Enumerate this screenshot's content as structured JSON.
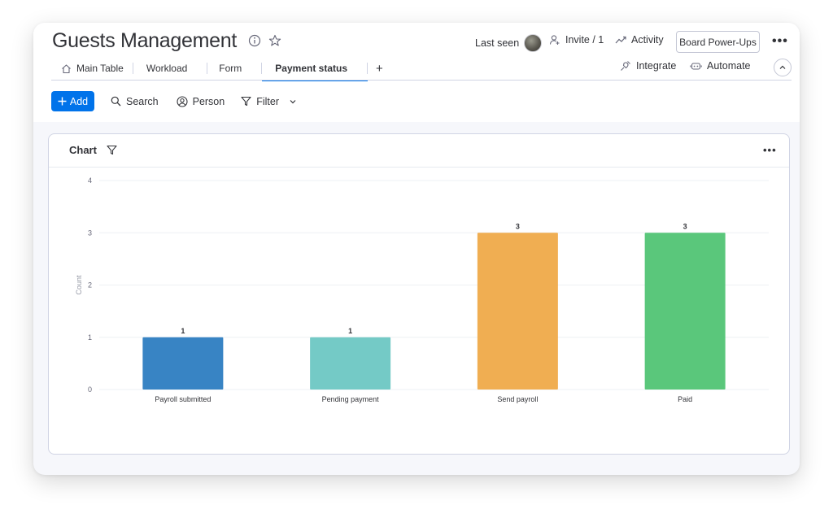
{
  "board": {
    "title": "Guests Management"
  },
  "header": {
    "last_seen_label": "Last seen",
    "invite_label": "Invite / 1",
    "activity_label": "Activity",
    "powerups_label": "Board Power-Ups",
    "more_label": "•••"
  },
  "tabs": [
    {
      "label": "Main Table",
      "icon": "home-icon"
    },
    {
      "label": "Workload"
    },
    {
      "label": "Form"
    },
    {
      "label": "Payment status",
      "active": true
    }
  ],
  "tab_add_label": "+",
  "right_actions": {
    "integrate_label": "Integrate",
    "automate_label": "Automate"
  },
  "toolbar": {
    "add_label": "Add",
    "search_label": "Search",
    "person_label": "Person",
    "filter_label": "Filter"
  },
  "widget": {
    "title": "Chart",
    "more_label": "•••"
  },
  "chart_data": {
    "type": "bar",
    "categories": [
      "Payroll submitted",
      "Pending payment",
      "Send payroll",
      "Paid"
    ],
    "values": [
      1,
      1,
      3,
      3
    ],
    "colors": [
      "#3884c4",
      "#74cac6",
      "#f0ae52",
      "#5ac77b"
    ],
    "data_labels": [
      "1",
      "1",
      "3",
      "3"
    ],
    "ylabel": "Count",
    "xlabel": "",
    "ylim": [
      0,
      4
    ],
    "yticks": [
      0,
      1,
      2,
      3,
      4
    ],
    "grid": true
  }
}
